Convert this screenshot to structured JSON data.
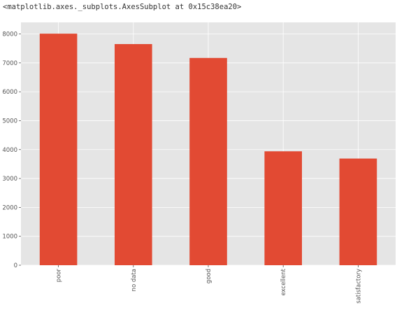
{
  "output_repr": "<matplotlib.axes._subplots.AxesSubplot at 0x15c38ea20>",
  "colors": {
    "bar": "#e24a33",
    "plot_background": "#e5e5e5",
    "grid": "#ffffff",
    "tick_text": "#555555"
  },
  "chart_data": {
    "type": "bar",
    "style": "ggplot",
    "categories": [
      "poor",
      "no data",
      "good",
      "excellent",
      "satisfactory"
    ],
    "values": [
      8010,
      7650,
      7170,
      3940,
      3690
    ],
    "ylim": [
      0,
      8400
    ],
    "yticks": [
      0,
      1000,
      2000,
      3000,
      4000,
      5000,
      6000,
      7000,
      8000
    ],
    "ytick_labels": [
      "0",
      "1000",
      "2000",
      "3000",
      "4000",
      "5000",
      "6000",
      "7000",
      "8000"
    ],
    "xtick_rotation": "vertical",
    "grid": true,
    "legend": false
  }
}
